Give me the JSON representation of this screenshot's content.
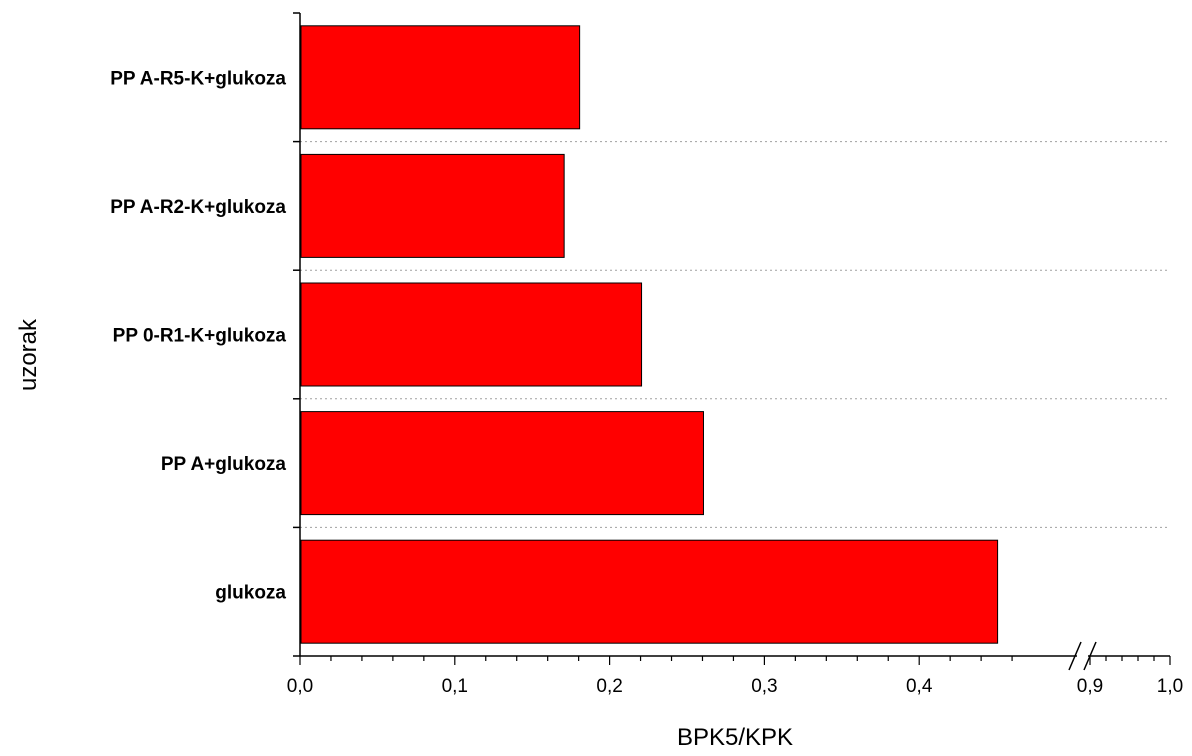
{
  "chart_data": {
    "type": "bar",
    "orientation": "horizontal",
    "categories": [
      "glukoza",
      "PP A+glukoza",
      "PP 0-R1-K+glukoza",
      "PP A-R2-K+glukoza",
      "PP A-R5-K+glukoza"
    ],
    "values": [
      0.45,
      0.26,
      0.22,
      0.17,
      0.18
    ],
    "xlabel": "BPK5/KPK",
    "ylabel": "uzorak",
    "xlim": [
      0.0,
      1.0
    ],
    "x_axis_break": [
      0.45,
      0.88
    ],
    "xticks_major": [
      "0,0",
      "0,1",
      "0,2",
      "0,3",
      "0,4",
      "0,9",
      "1,0"
    ],
    "bar_color": "#ff0000",
    "grid": "horizontal dotted between categories",
    "legend": "none"
  }
}
